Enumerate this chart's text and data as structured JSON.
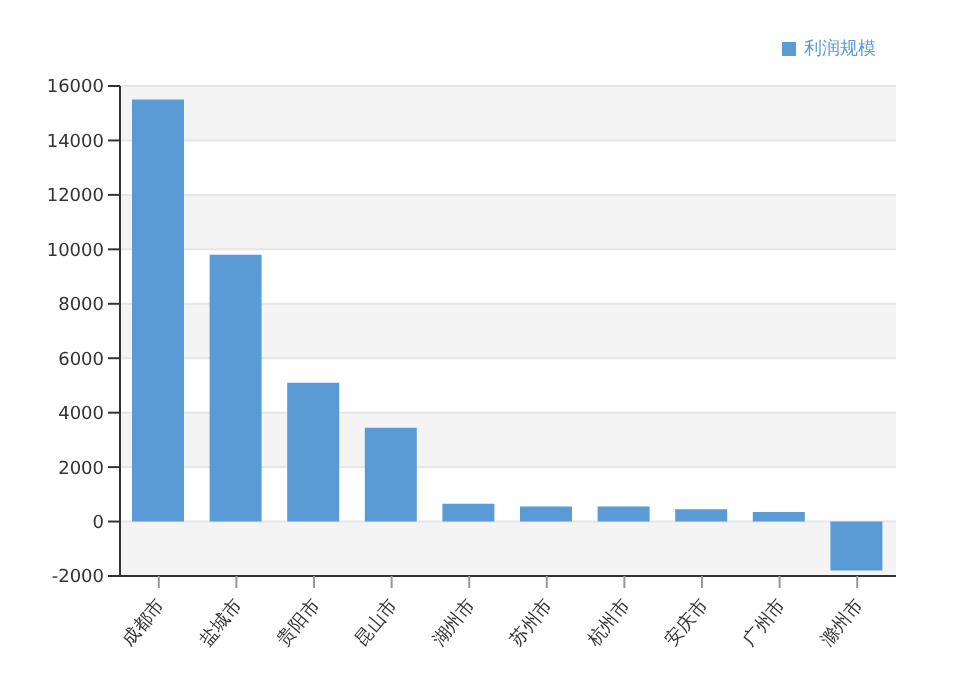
{
  "chart_data": {
    "type": "bar",
    "categories": [
      "成都市",
      "盐城市",
      "贵阳市",
      "昆山市",
      "湖州市",
      "苏州市",
      "杭州市",
      "安庆市",
      "广州市",
      "滁州市"
    ],
    "series": [
      {
        "name": "利润规模",
        "color": "#5b9bd5",
        "values": [
          15500,
          9800,
          5100,
          3450,
          650,
          550,
          550,
          450,
          350,
          -1800
        ]
      }
    ],
    "ylim": [
      -2000,
      16000
    ],
    "yticks": [
      -2000,
      0,
      2000,
      4000,
      6000,
      8000,
      10000,
      12000,
      14000,
      16000
    ],
    "grid": "y",
    "legend": "top right"
  }
}
